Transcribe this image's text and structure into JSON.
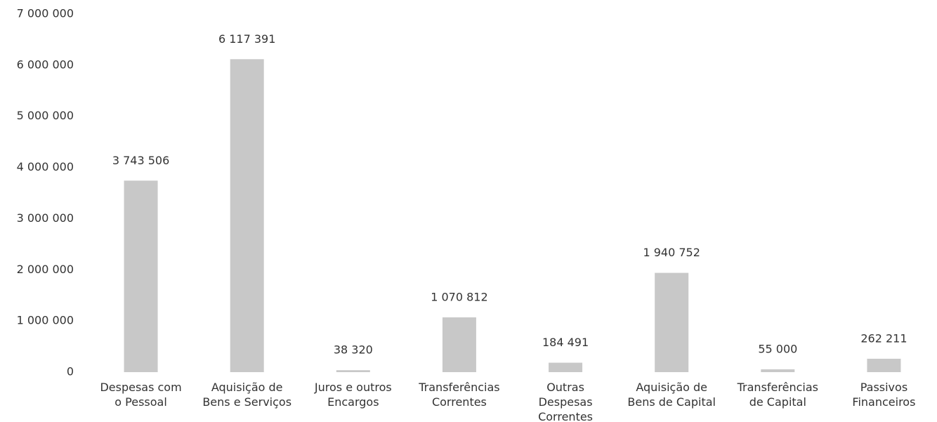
{
  "chart_data": {
    "type": "bar",
    "categories": [
      "Despesas com\no Pessoal",
      "Aquisição de\nBens e Serviços",
      "Juros e outros\nEncargos",
      "Transferências\nCorrentes",
      "Outras\nDespesas\nCorrentes",
      "Aquisição de\nBens de Capital",
      "Transferências\nde Capital",
      "Passivos\nFinanceiros"
    ],
    "values": [
      3743506,
      6117391,
      38320,
      1070812,
      184491,
      1940752,
      55000,
      262211
    ],
    "value_labels": [
      "3 743 506",
      "6 117 391",
      "38 320",
      "1 070 812",
      "184 491",
      "1 940 752",
      "55 000",
      "262 211"
    ],
    "color": "#c8c8c8",
    "ylim": [
      0,
      7000000
    ],
    "yticks": [
      0,
      {
        "value": 1000000,
        "label": "1 000 000"
      },
      {
        "value": 2000000,
        "label": "2 000 000"
      },
      {
        "value": 3000000,
        "label": "3 000 000"
      },
      {
        "value": 4000000,
        "label": "4 000 000"
      },
      {
        "value": 5000000,
        "label": "5 000 000"
      },
      {
        "value": 6000000,
        "label": "6 000 000"
      },
      {
        "value": 7000000,
        "label": "7 000 000"
      }
    ],
    "grid": false
  }
}
